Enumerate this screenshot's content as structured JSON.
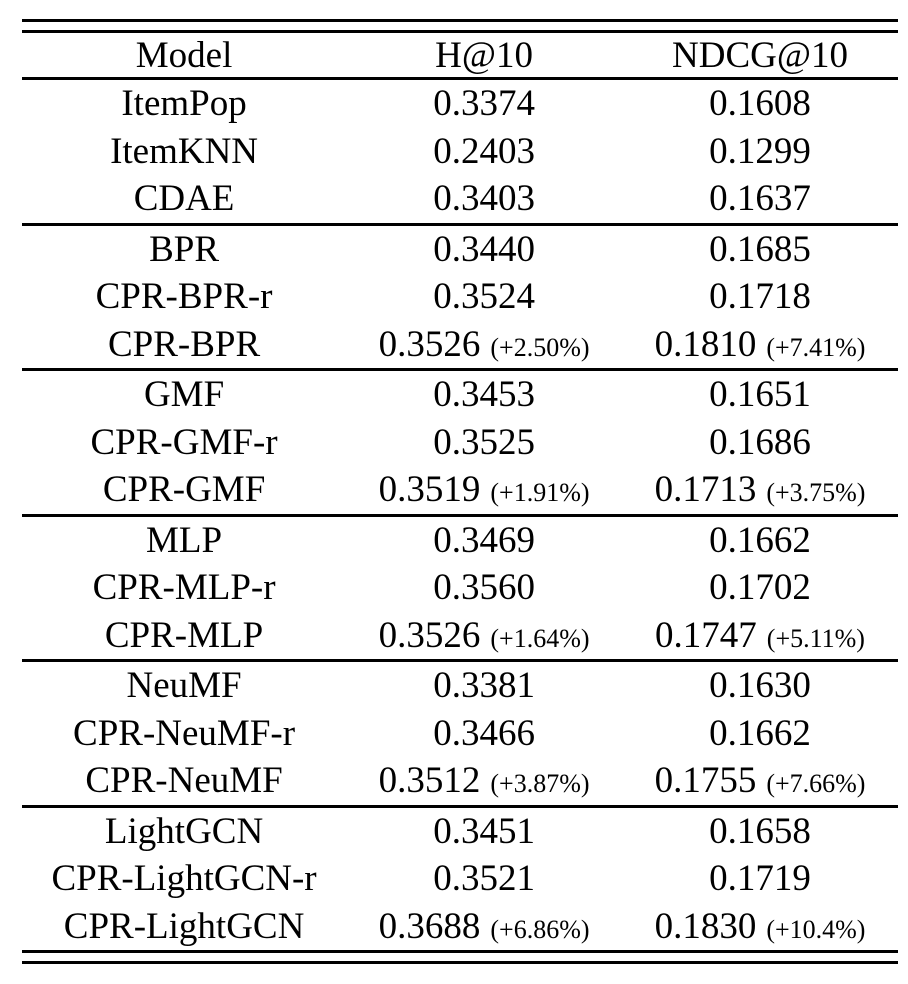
{
  "table": {
    "headers": {
      "model": "Model",
      "h10": "H@10",
      "ndcg10": "NDCG@10"
    },
    "groups": [
      {
        "rows": [
          {
            "model": "ItemPop",
            "h10": "0.3374",
            "h10_delta": "",
            "ndcg10": "0.1608",
            "ndcg10_delta": ""
          },
          {
            "model": "ItemKNN",
            "h10": "0.2403",
            "h10_delta": "",
            "ndcg10": "0.1299",
            "ndcg10_delta": ""
          },
          {
            "model": "CDAE",
            "h10": "0.3403",
            "h10_delta": "",
            "ndcg10": "0.1637",
            "ndcg10_delta": ""
          }
        ]
      },
      {
        "rows": [
          {
            "model": "BPR",
            "h10": "0.3440",
            "h10_delta": "",
            "ndcg10": "0.1685",
            "ndcg10_delta": ""
          },
          {
            "model": "CPR-BPR-r",
            "h10": "0.3524",
            "h10_delta": "",
            "ndcg10": "0.1718",
            "ndcg10_delta": ""
          },
          {
            "model": "CPR-BPR",
            "h10": "0.3526",
            "h10_delta": "(+2.50%)",
            "ndcg10": "0.1810",
            "ndcg10_delta": "(+7.41%)"
          }
        ]
      },
      {
        "rows": [
          {
            "model": "GMF",
            "h10": "0.3453",
            "h10_delta": "",
            "ndcg10": "0.1651",
            "ndcg10_delta": ""
          },
          {
            "model": "CPR-GMF-r",
            "h10": "0.3525",
            "h10_delta": "",
            "ndcg10": "0.1686",
            "ndcg10_delta": ""
          },
          {
            "model": "CPR-GMF",
            "h10": "0.3519",
            "h10_delta": "(+1.91%)",
            "ndcg10": "0.1713",
            "ndcg10_delta": "(+3.75%)"
          }
        ]
      },
      {
        "rows": [
          {
            "model": "MLP",
            "h10": "0.3469",
            "h10_delta": "",
            "ndcg10": "0.1662",
            "ndcg10_delta": ""
          },
          {
            "model": "CPR-MLP-r",
            "h10": "0.3560",
            "h10_delta": "",
            "ndcg10": "0.1702",
            "ndcg10_delta": ""
          },
          {
            "model": "CPR-MLP",
            "h10": "0.3526",
            "h10_delta": "(+1.64%)",
            "ndcg10": "0.1747",
            "ndcg10_delta": "(+5.11%)"
          }
        ]
      },
      {
        "rows": [
          {
            "model": "NeuMF",
            "h10": "0.3381",
            "h10_delta": "",
            "ndcg10": "0.1630",
            "ndcg10_delta": ""
          },
          {
            "model": "CPR-NeuMF-r",
            "h10": "0.3466",
            "h10_delta": "",
            "ndcg10": "0.1662",
            "ndcg10_delta": ""
          },
          {
            "model": "CPR-NeuMF",
            "h10": "0.3512",
            "h10_delta": "(+3.87%)",
            "ndcg10": "0.1755",
            "ndcg10_delta": "(+7.66%)"
          }
        ]
      },
      {
        "rows": [
          {
            "model": "LightGCN",
            "h10": "0.3451",
            "h10_delta": "",
            "ndcg10": "0.1658",
            "ndcg10_delta": ""
          },
          {
            "model": "CPR-LightGCN-r",
            "h10": "0.3521",
            "h10_delta": "",
            "ndcg10": "0.1719",
            "ndcg10_delta": ""
          },
          {
            "model": "CPR-LightGCN",
            "h10": "0.3688",
            "h10_delta": "(+6.86%)",
            "ndcg10": "0.1830",
            "ndcg10_delta": "(+10.4%)"
          }
        ]
      }
    ]
  }
}
